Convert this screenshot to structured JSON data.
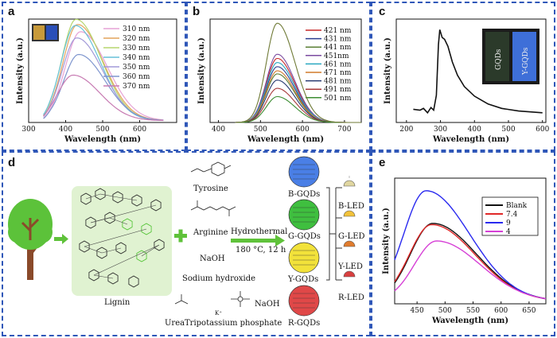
{
  "panels": {
    "a": "a",
    "b": "b",
    "c": "c",
    "d": "d",
    "e": "e"
  },
  "chart_data": [
    {
      "id": "a",
      "type": "line",
      "xlabel": "Wavelength (nm)",
      "ylabel": "Intensity (a.u.)",
      "xlim": [
        300,
        700
      ],
      "xticks": [
        300,
        400,
        500,
        600
      ],
      "series": [
        {
          "name": "310 nm",
          "color": "#e6a2d6",
          "peak_x": 440,
          "peak_y": 0.86,
          "width": 58
        },
        {
          "name": "320 nm",
          "color": "#e4a45c",
          "peak_x": 432,
          "peak_y": 0.93,
          "width": 56
        },
        {
          "name": "330 nm",
          "color": "#b6d66e",
          "peak_x": 428,
          "peak_y": 0.98,
          "width": 55
        },
        {
          "name": "340 nm",
          "color": "#66c1d8",
          "peak_x": 426,
          "peak_y": 0.92,
          "width": 55
        },
        {
          "name": "350 nm",
          "color": "#a29ad8",
          "peak_x": 430,
          "peak_y": 0.8,
          "width": 56
        },
        {
          "name": "360 nm",
          "color": "#7f96ce",
          "peak_x": 435,
          "peak_y": 0.64,
          "width": 57
        },
        {
          "name": "370 nm",
          "color": "#c77ab2",
          "peak_x": 420,
          "peak_y": 0.44,
          "width": 58
        }
      ]
    },
    {
      "id": "b",
      "type": "line",
      "xlabel": "Wavelength (nm)",
      "ylabel": "Intensity (a.u.)",
      "xlim": [
        380,
        740
      ],
      "xticks": [
        400,
        500,
        600,
        700
      ],
      "series": [
        {
          "name": "421 nm",
          "color": "#c62828",
          "peak_y": 0.62
        },
        {
          "name": "431 nm",
          "color": "#2c3e8f",
          "peak_y": 0.54
        },
        {
          "name": "441 nm",
          "color": "#5a7f35",
          "peak_y": 0.47
        },
        {
          "name": "451nm",
          "color": "#7b4ba0",
          "peak_y": 0.66
        },
        {
          "name": "461 nm",
          "color": "#2aa7c0",
          "peak_y": 0.58
        },
        {
          "name": "471 nm",
          "color": "#d07a2a",
          "peak_y": 0.5
        },
        {
          "name": "481 nm",
          "color": "#283a70",
          "peak_y": 0.41
        },
        {
          "name": "491 nm",
          "color": "#a73a3a",
          "peak_y": 0.33
        },
        {
          "name": "501 nm",
          "color": "#3c8d32",
          "peak_y": 0.25
        },
        {
          "name": "",
          "color": "#6f7a36",
          "peak_y": 0.96
        }
      ],
      "peak_x": 540
    },
    {
      "id": "c",
      "type": "line",
      "xlabel": "Wavelength (nm)",
      "ylabel": "Intensity (a.u.)",
      "xlim": [
        170,
        610
      ],
      "xticks": [
        200,
        300,
        400,
        500,
        600
      ],
      "points": [
        [
          220,
          0.06
        ],
        [
          240,
          0.05
        ],
        [
          250,
          0.07
        ],
        [
          262,
          0.02
        ],
        [
          272,
          0.08
        ],
        [
          280,
          0.05
        ],
        [
          288,
          0.22
        ],
        [
          294,
          0.8
        ],
        [
          298,
          0.97
        ],
        [
          305,
          0.88
        ],
        [
          312,
          0.86
        ],
        [
          322,
          0.78
        ],
        [
          335,
          0.6
        ],
        [
          350,
          0.45
        ],
        [
          370,
          0.32
        ],
        [
          400,
          0.21
        ],
        [
          440,
          0.12
        ],
        [
          480,
          0.07
        ],
        [
          530,
          0.04
        ],
        [
          600,
          0.02
        ]
      ]
    },
    {
      "id": "e",
      "type": "line",
      "xlabel": "Wavelength (nm)",
      "ylabel": "Intensity (a.u.)",
      "xlim": [
        410,
        680
      ],
      "xticks": [
        450,
        500,
        550,
        600,
        650
      ],
      "series": [
        {
          "name": "Blank",
          "color": "#111111",
          "peak_x": 478,
          "peak_y": 0.62
        },
        {
          "name": "7.4",
          "color": "#e02828",
          "peak_x": 476,
          "peak_y": 0.61
        },
        {
          "name": "9",
          "color": "#2a2aef",
          "peak_x": 466,
          "peak_y": 0.88
        },
        {
          "name": "4",
          "color": "#d640d6",
          "peak_x": 485,
          "peak_y": 0.48
        }
      ]
    }
  ],
  "insets": {
    "a": {
      "colors": [
        "#c89a3a",
        "#2a4fb8"
      ]
    },
    "c": {
      "left": "GQDs",
      "right": "Y-GQDs"
    }
  },
  "schematic": {
    "tyrosine": "Tyrosine",
    "arginine": "Arginine",
    "naoh1": "NaOH",
    "sodium_hydroxide": "Sodium hydroxide",
    "lignin": "Lignin",
    "urea": "Urea",
    "tripotassium": "Tripotassium phosphate",
    "naoh2": "NaOH",
    "k_plus": "K⁺",
    "hydrothermal": "Hydrothermal",
    "conditions": "180 °C, 12 h",
    "gqds": [
      {
        "label": "B-GQDs",
        "color": "#4a7fe6"
      },
      {
        "label": "G-GQDs",
        "color": "#3fbf3f"
      },
      {
        "label": "Y-GQDs",
        "color": "#f2e23a"
      },
      {
        "label": "R-GQDs",
        "color": "#e04848"
      }
    ],
    "leds": [
      {
        "label": "B-LED",
        "color": "#e0d6a0"
      },
      {
        "label": "G-LED",
        "color": "#f2c23a"
      },
      {
        "label": "Y-LED",
        "color": "#e07c2e"
      },
      {
        "label": "R-LED",
        "color": "#d84040"
      }
    ],
    "accent_green": "#5fc23a"
  }
}
